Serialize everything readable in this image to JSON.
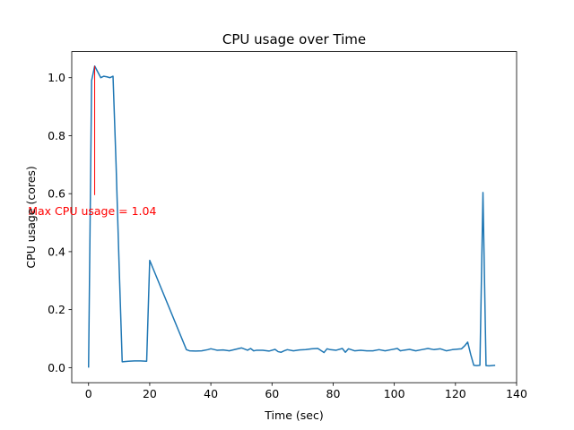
{
  "chart_data": {
    "type": "line",
    "title": "CPU usage over Time",
    "xlabel": "Time (sec)",
    "ylabel": "CPU usage (cores)",
    "xlim": [
      -5.5,
      140
    ],
    "ylim": [
      -0.052,
      1.09
    ],
    "xticks": [
      0,
      20,
      40,
      60,
      80,
      100,
      120,
      140
    ],
    "yticks": [
      0.0,
      0.2,
      0.4,
      0.6,
      0.8,
      1.0
    ],
    "xtick_labels": [
      "0",
      "20",
      "40",
      "60",
      "80",
      "100",
      "120",
      "140"
    ],
    "ytick_labels": [
      "0.0",
      "0.2",
      "0.4",
      "0.6",
      "0.8",
      "1.0"
    ],
    "grid": false,
    "series": [
      {
        "color": "#1f77b4",
        "x": [
          0,
          1,
          2,
          3,
          4,
          5,
          6,
          7,
          8,
          9,
          10,
          11,
          13,
          15,
          17,
          19,
          20,
          32,
          33,
          35,
          37,
          39,
          40,
          42,
          44,
          46,
          48,
          50,
          52,
          53,
          54,
          55,
          57,
          59,
          61,
          62,
          63,
          64,
          65,
          67,
          69,
          71,
          73,
          75,
          77,
          78,
          79,
          81,
          83,
          84,
          85,
          87,
          89,
          91,
          93,
          95,
          97,
          99,
          101,
          102,
          103,
          105,
          107,
          109,
          111,
          113,
          115,
          117,
          119,
          121,
          122,
          123,
          124,
          125,
          126,
          127,
          128,
          129,
          130,
          131,
          133
        ],
        "y": [
          0.0,
          0.99,
          1.04,
          1.02,
          1.0,
          1.005,
          1.003,
          1.0,
          1.005,
          0.7,
          0.35,
          0.02,
          0.022,
          0.023,
          0.023,
          0.022,
          0.37,
          0.062,
          0.058,
          0.057,
          0.058,
          0.062,
          0.065,
          0.06,
          0.061,
          0.058,
          0.063,
          0.068,
          0.06,
          0.066,
          0.058,
          0.06,
          0.06,
          0.057,
          0.063,
          0.055,
          0.053,
          0.058,
          0.062,
          0.058,
          0.061,
          0.062,
          0.065,
          0.066,
          0.052,
          0.065,
          0.062,
          0.06,
          0.066,
          0.053,
          0.065,
          0.058,
          0.06,
          0.058,
          0.058,
          0.062,
          0.058,
          0.062,
          0.066,
          0.058,
          0.06,
          0.063,
          0.058,
          0.062,
          0.066,
          0.062,
          0.065,
          0.058,
          0.062,
          0.064,
          0.065,
          0.075,
          0.088,
          0.045,
          0.008,
          0.007,
          0.008,
          0.604,
          0.007,
          0.006,
          0.008
        ]
      }
    ],
    "annotations": [
      {
        "text": "Max CPU usage = 1.04",
        "color": "#ff0000",
        "x": 2,
        "y": 1.04,
        "text_x": 1.2,
        "text_y": 0.54,
        "arrow_end_y": 0.595
      }
    ]
  }
}
